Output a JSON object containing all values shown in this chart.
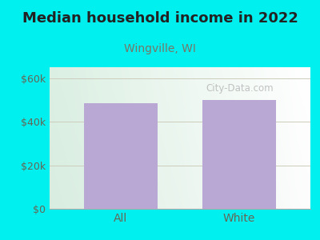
{
  "title": "Median household income in 2022",
  "subtitle": "Wingville, WI",
  "categories": [
    "All",
    "White"
  ],
  "values": [
    48500,
    49800
  ],
  "bar_color": "#b9a8d4",
  "background_outer": "#00f0f0",
  "background_inner_left": "#d8edcc",
  "background_inner_right": "#e8f8f8",
  "background_inner_top": "#f0f8f0",
  "background_inner_bottom": "#d8f5ee",
  "ylim": [
    0,
    65000
  ],
  "yticks": [
    0,
    20000,
    40000,
    60000
  ],
  "ytick_labels": [
    "$0",
    "$20k",
    "$40k",
    "$60k"
  ],
  "watermark": "City-Data.com",
  "title_fontsize": 13,
  "subtitle_fontsize": 10,
  "tick_fontsize": 9,
  "title_color": "#222222",
  "subtitle_color": "#777766",
  "tick_color": "#666655",
  "grid_color": "#ccccbb"
}
